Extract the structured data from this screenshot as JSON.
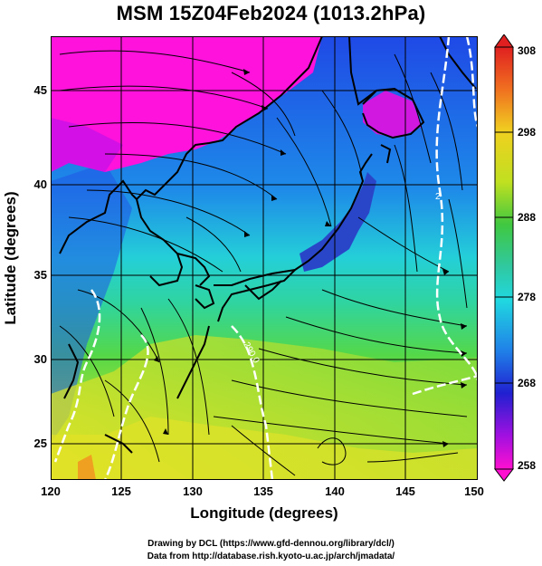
{
  "title": "MSM 15Z04Feb2024 (1013.2hPa)",
  "axes": {
    "xlabel": "Longitude (degrees)",
    "ylabel": "Latitude  (degrees)",
    "x_ticks": [
      "120",
      "125",
      "130",
      "135",
      "140",
      "145",
      "150"
    ],
    "y_ticks": [
      "45",
      "40",
      "35",
      "30",
      "25"
    ],
    "xlim": [
      120,
      150
    ],
    "ylim": [
      22.5,
      47.6
    ]
  },
  "colorbar": {
    "ticks": [
      "308",
      "298",
      "288",
      "278",
      "268",
      "258"
    ],
    "range": [
      258,
      308
    ]
  },
  "contour_labels": [
    "290.0",
    "2"
  ],
  "credits": {
    "line1": "Drawing by DCL (https://www.gfd-dennou.org/library/dcl/)",
    "line2": "Data from http://database.rish.kyoto-u.ac.jp/arch/jmadata/"
  },
  "colors": {
    "cold_magenta": "#ff10e0",
    "deep_blue": "#1a3ee0",
    "cyan": "#20d8e0",
    "green": "#30c850",
    "yellow": "#f0e020",
    "land_outline": "#000000",
    "contour": "#ffffff"
  },
  "map_features": [
    "coastlines",
    "lat-lon grid",
    "streamlines",
    "temperature shading",
    "white isotherm contours"
  ]
}
